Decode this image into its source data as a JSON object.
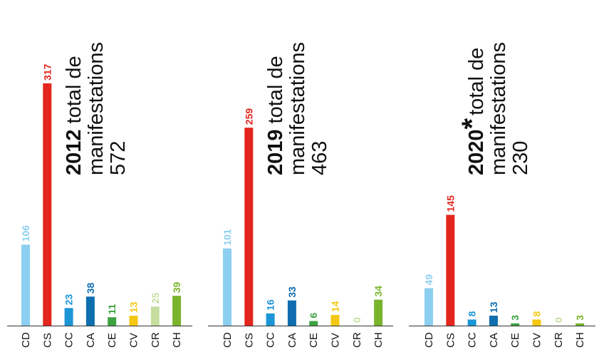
{
  "chart_data": [
    {
      "type": "bar",
      "title_year": "2012",
      "title_suffix": "",
      "title_line1_rest": "total de",
      "title_line2": "manifestations",
      "title_line3": "572",
      "categories": [
        "CD",
        "CS",
        "CC",
        "CA",
        "CE",
        "CV",
        "CR",
        "CH"
      ],
      "values": [
        106,
        317,
        23,
        38,
        11,
        13,
        25,
        39
      ],
      "colors": [
        "#8ccff0",
        "#e3261e",
        "#1b95d6",
        "#0f6eb0",
        "#3ea243",
        "#f4c713",
        "#c6dda0",
        "#7ab42d"
      ],
      "ylim": [
        0,
        317
      ]
    },
    {
      "type": "bar",
      "title_year": "2019",
      "title_suffix": "",
      "title_line1_rest": "total de",
      "title_line2": "manifestations",
      "title_line3": "463",
      "categories": [
        "CD",
        "CS",
        "CC",
        "CA",
        "CE",
        "CV",
        "CR",
        "CH"
      ],
      "values": [
        101,
        259,
        16,
        33,
        6,
        14,
        0,
        34
      ],
      "colors": [
        "#8ccff0",
        "#e3261e",
        "#1b95d6",
        "#0f6eb0",
        "#3ea243",
        "#f4c713",
        "#c6dda0",
        "#7ab42d"
      ],
      "ylim": [
        0,
        317
      ]
    },
    {
      "type": "bar",
      "title_year": "2020",
      "title_suffix": "*",
      "title_line1_rest": "total de",
      "title_line2": "manifestations",
      "title_line3": "230",
      "categories": [
        "CD",
        "CS",
        "CC",
        "CA",
        "CE",
        "CV",
        "CR",
        "CH"
      ],
      "values": [
        49,
        145,
        8,
        13,
        3,
        8,
        0,
        3
      ],
      "colors": [
        "#8ccff0",
        "#e3261e",
        "#1b95d6",
        "#0f6eb0",
        "#3ea243",
        "#f4c713",
        "#c6dda0",
        "#7ab42d"
      ],
      "ylim": [
        0,
        317
      ]
    }
  ]
}
